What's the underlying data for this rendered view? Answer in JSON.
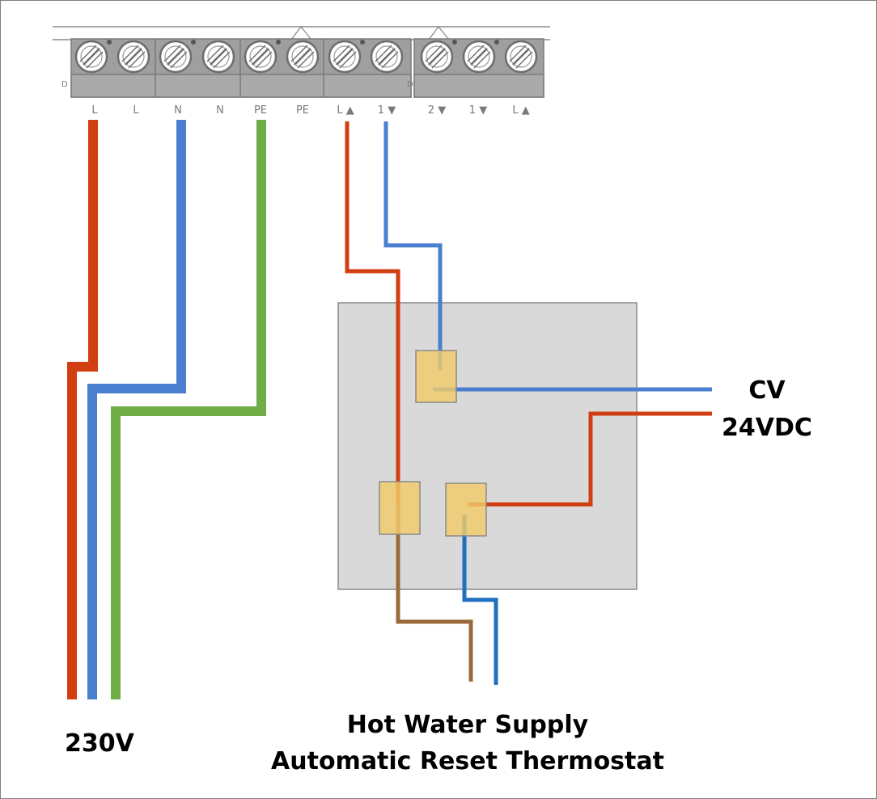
{
  "terminal_block": {
    "left_group_labels": [
      "L",
      "L",
      "N",
      "N",
      "PE",
      "PE",
      "L ▲",
      "1 ▼"
    ],
    "right_group_labels": [
      "2 ▼",
      "1 ▼",
      "L ▲"
    ]
  },
  "labels": {
    "supply_voltage": "230V",
    "cv_line1": "CV",
    "cv_line2": "24VDC",
    "thermostat_line1": "Hot Water Supply",
    "thermostat_line2": "Automatic Reset Thermostat"
  },
  "colors": {
    "live": "#d13e12",
    "neutral": "#4a7fd0",
    "earth": "#70ad47",
    "brown": "#9a6b3a",
    "blue_tail": "#1f70c1",
    "box_fill": "#d9d9d9",
    "connector_fill": "#f0cc6a"
  }
}
